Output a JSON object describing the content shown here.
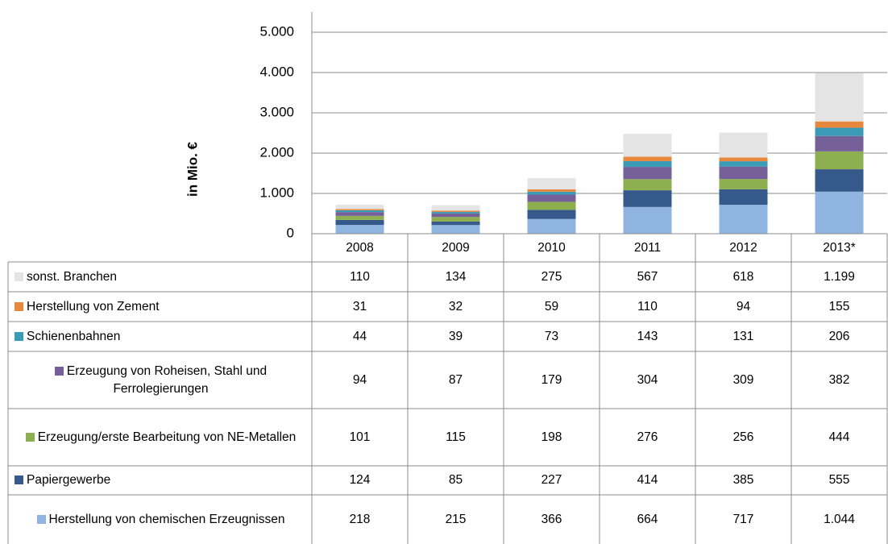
{
  "chart_data": {
    "type": "stacked_bar",
    "y_label": "in Mio. €",
    "categories": [
      "2008",
      "2009",
      "2010",
      "2011",
      "2012",
      "2013*"
    ],
    "ylim": [
      0,
      5000
    ],
    "yticks": [
      0,
      {
        "value": 1000,
        "label": "1.000"
      },
      {
        "value": 2000,
        "label": "2.000"
      },
      {
        "value": 3000,
        "label": "3.000"
      },
      {
        "value": 4000,
        "label": "4.000"
      },
      {
        "value": 5000,
        "label": "5.000"
      }
    ],
    "grid": true,
    "series": [
      {
        "name": "sonst. Branchen",
        "color": "#e4e4e4",
        "values": [
          110,
          134,
          275,
          567,
          618,
          1199
        ],
        "value_labels": [
          "110",
          "134",
          "275",
          "567",
          "618",
          "1.199"
        ]
      },
      {
        "name": "Herstellung von Zement",
        "color": "#e8883c",
        "values": [
          31,
          32,
          59,
          110,
          94,
          155
        ]
      },
      {
        "name": "Schienenbahnen",
        "color": "#3a9bb7",
        "values": [
          44,
          39,
          73,
          143,
          131,
          206
        ]
      },
      {
        "name": "Erzeugung von Roheisen, Stahl und Ferrolegierungen",
        "color": "#76609a",
        "values": [
          94,
          87,
          179,
          304,
          309,
          382
        ]
      },
      {
        "name": "Erzeugung/erste Bearbeitung von NE-Metallen",
        "color": "#8eaf4f",
        "values": [
          101,
          115,
          198,
          276,
          256,
          444
        ]
      },
      {
        "name": "Papiergewerbe",
        "color": "#35598a",
        "values": [
          124,
          85,
          227,
          414,
          385,
          555
        ]
      },
      {
        "name": "Herstellung von chemischen Erzeugnissen",
        "color": "#8fb4e0",
        "values": [
          218,
          215,
          366,
          664,
          717,
          1044
        ],
        "value_labels": [
          "218",
          "215",
          "366",
          "664",
          "717",
          "1.044"
        ]
      }
    ]
  }
}
